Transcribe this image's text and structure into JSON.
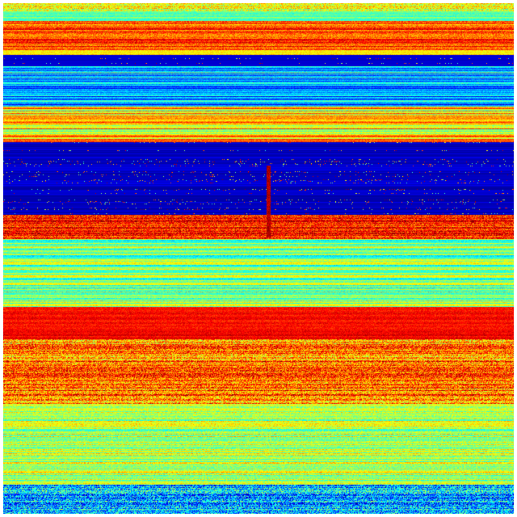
{
  "figure": {
    "colormap": "jet",
    "colors": {
      "low": "#00008f",
      "mid_low": "#00bfff",
      "mid": "#7fff7f",
      "mid_high": "#ffdf00",
      "high": "#ff2000",
      "max": "#800000"
    }
  }
}
